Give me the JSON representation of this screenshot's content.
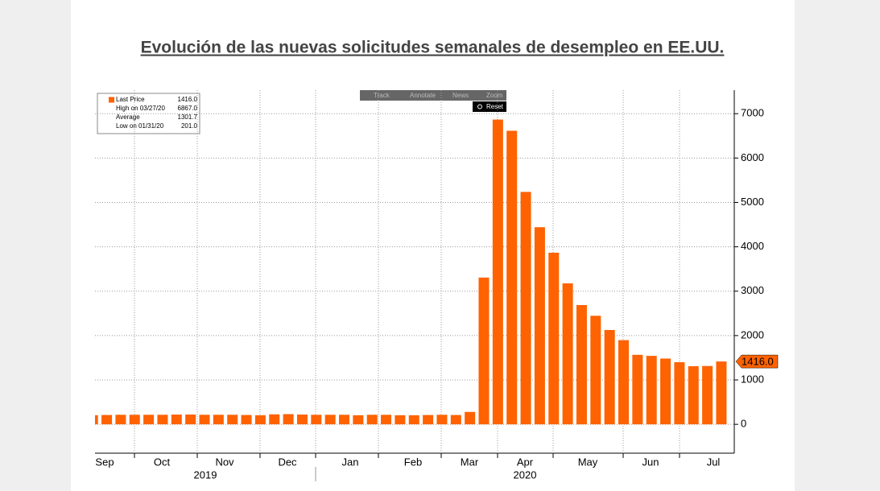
{
  "chart_data": {
    "type": "bar",
    "title": "Evolución de las nuevas solicitudes semanales de desempleo en EE.UU.",
    "categories": [
      null,
      null,
      null,
      null,
      null,
      null,
      null,
      null,
      null,
      null,
      null,
      null,
      null,
      null,
      null,
      null,
      null,
      null,
      null,
      null,
      null,
      null,
      null,
      null,
      null,
      null,
      null,
      null,
      null,
      null,
      null,
      null,
      null,
      null,
      null,
      null,
      null,
      null,
      null,
      null,
      null,
      null,
      null,
      null,
      null,
      null
    ],
    "values": [
      205,
      210,
      215,
      215,
      215,
      215,
      220,
      220,
      215,
      215,
      215,
      210,
      205,
      225,
      230,
      220,
      215,
      215,
      215,
      205,
      215,
      215,
      205,
      205,
      210,
      215,
      210,
      280,
      3307,
      6867,
      6615,
      5237,
      4442,
      3867,
      3176,
      2687,
      2446,
      2126,
      1897,
      1566,
      1542,
      1482,
      1400,
      1310,
      1314,
      1416
    ],
    "color": "#ff6200",
    "months": [
      "Sep",
      "Oct",
      "Nov",
      "Dec",
      "Jan",
      "Feb",
      "Mar",
      "Apr",
      "May",
      "Jun",
      "Jul"
    ],
    "years": [
      "2019",
      "2020"
    ],
    "ylim": [
      -650,
      7530
    ],
    "yticks": [
      0,
      1000,
      2000,
      3000,
      4000,
      5000,
      6000,
      7000
    ],
    "grid": true,
    "last_price_label": "1416.0",
    "legend": [
      {
        "name": "Last Price",
        "value": "1416.0"
      },
      {
        "name": "High on 03/27/20",
        "value": "6867.0"
      },
      {
        "name": "Average",
        "value": "1301.7"
      },
      {
        "name": "Low on 01/31/20",
        "value": "201.0"
      }
    ],
    "toolbar": [
      "Track",
      "Annotate",
      "News",
      "Zoom"
    ],
    "reset": "Reset"
  }
}
